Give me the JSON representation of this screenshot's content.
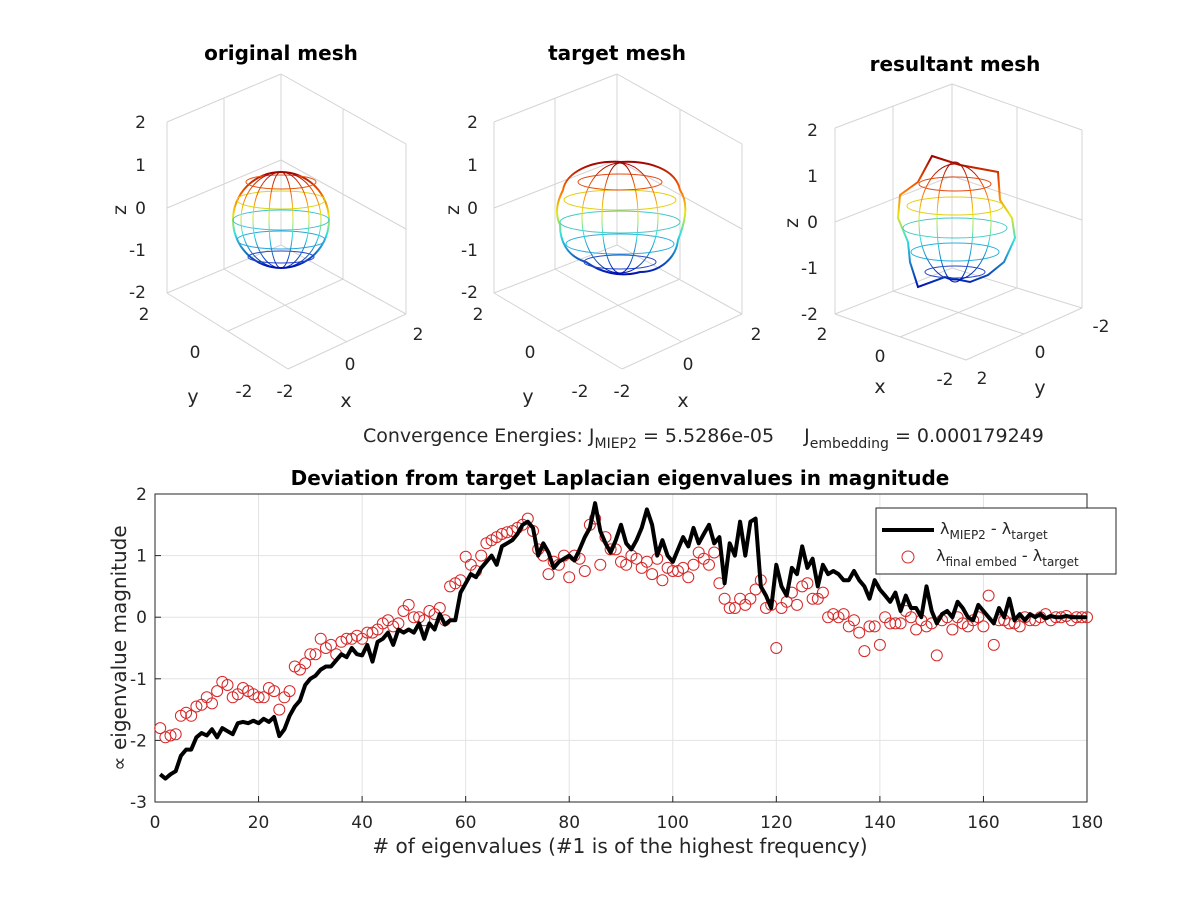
{
  "titles": {
    "mesh1": "original mesh",
    "mesh2": "target mesh",
    "mesh3": "resultant mesh",
    "bottom": "Deviation from target Laplacian eigenvalues in magnitude"
  },
  "convergence": {
    "prefix": "Convergence Energies: J",
    "sub1": "MIEP2",
    "mid1": " = 5.5286e-05",
    "j2": "J",
    "sub2": "embedding",
    "mid2": " = 0.000179249"
  },
  "mesh_axes": {
    "z_label": "z",
    "x_label": "x",
    "y_label": "y",
    "ticks": [
      "2",
      "1",
      "0",
      "-1",
      "-2"
    ],
    "side_ticks_a": [
      "2",
      "0",
      "-2"
    ],
    "side_ticks_b": [
      "-2",
      "0",
      "2"
    ]
  },
  "legend": {
    "l1_a": "λ",
    "l1_sub": "MIEP2",
    "l1_b": " - λ",
    "l1_sub2": "target",
    "l2_a": "λ",
    "l2_sub": "final embed",
    "l2_b": " - λ",
    "l2_sub2": "target"
  },
  "colors": {
    "line": "#000000",
    "marker": "#d62728"
  },
  "chart_data": {
    "type": "line",
    "title": "Deviation from target Laplacian eigenvalues in magnitude",
    "xlabel": "# of eigenvalues (#1 is of the highest frequency)",
    "ylabel": "∝ eigenvalue magnitude",
    "xlim": [
      0,
      180
    ],
    "ylim": [
      -3,
      2
    ],
    "xticks": [
      0,
      20,
      40,
      60,
      80,
      100,
      120,
      140,
      160,
      180
    ],
    "yticks": [
      -3,
      -2,
      -1,
      0,
      1,
      2
    ],
    "grid": true,
    "legend_position": "top-right",
    "series": [
      {
        "name": "λMIEP2 - λtarget",
        "style": "line",
        "x": [
          1,
          2,
          3,
          4,
          5,
          6,
          7,
          8,
          9,
          10,
          11,
          12,
          13,
          14,
          15,
          16,
          17,
          18,
          19,
          20,
          21,
          22,
          23,
          24,
          25,
          26,
          27,
          28,
          29,
          30,
          31,
          32,
          33,
          34,
          35,
          36,
          37,
          38,
          39,
          40,
          41,
          42,
          43,
          44,
          45,
          46,
          47,
          48,
          49,
          50,
          51,
          52,
          53,
          54,
          55,
          56,
          57,
          58,
          59,
          60,
          61,
          62,
          63,
          64,
          65,
          66,
          67,
          68,
          69,
          70,
          71,
          72,
          73,
          74,
          75,
          76,
          77,
          78,
          79,
          80,
          81,
          82,
          83,
          84,
          85,
          86,
          87,
          88,
          89,
          90,
          91,
          92,
          93,
          94,
          95,
          96,
          97,
          98,
          99,
          100,
          101,
          102,
          103,
          104,
          105,
          106,
          107,
          108,
          109,
          110,
          111,
          112,
          113,
          114,
          115,
          116,
          117,
          118,
          119,
          120,
          121,
          122,
          123,
          124,
          125,
          126,
          127,
          128,
          129,
          130,
          131,
          132,
          133,
          134,
          135,
          136,
          137,
          138,
          139,
          140,
          141,
          142,
          143,
          144,
          145,
          146,
          147,
          148,
          149,
          150,
          151,
          152,
          153,
          154,
          155,
          156,
          157,
          158,
          159,
          160,
          161,
          162,
          163,
          164,
          165,
          166,
          167,
          168,
          169,
          170,
          171,
          172,
          173,
          174,
          175,
          176,
          177,
          178,
          179,
          180
        ],
        "values": [
          -2.55,
          -2.62,
          -2.55,
          -2.5,
          -2.25,
          -2.15,
          -2.15,
          -1.95,
          -1.88,
          -1.92,
          -1.82,
          -1.95,
          -1.8,
          -1.85,
          -1.9,
          -1.72,
          -1.7,
          -1.72,
          -1.68,
          -1.72,
          -1.65,
          -1.7,
          -1.62,
          -1.93,
          -1.82,
          -1.6,
          -1.45,
          -1.35,
          -1.1,
          -1.0,
          -0.95,
          -0.85,
          -0.8,
          -0.8,
          -0.7,
          -0.6,
          -0.65,
          -0.5,
          -0.6,
          -0.62,
          -0.45,
          -0.72,
          -0.4,
          -0.35,
          -0.25,
          -0.45,
          -0.2,
          -0.25,
          -0.2,
          -0.25,
          -0.1,
          -0.35,
          -0.1,
          -0.2,
          0.05,
          -0.12,
          -0.05,
          -0.05,
          0.4,
          0.55,
          0.7,
          0.65,
          0.8,
          0.9,
          1.0,
          0.85,
          1.15,
          1.2,
          1.25,
          1.35,
          1.5,
          1.55,
          1.45,
          1.0,
          1.2,
          1.05,
          0.8,
          0.9,
          0.95,
          1.0,
          0.92,
          1.1,
          1.3,
          1.45,
          1.85,
          1.4,
          1.2,
          1.05,
          1.25,
          1.5,
          1.2,
          1.1,
          1.25,
          1.45,
          1.75,
          1.5,
          1.0,
          1.25,
          1.0,
          0.9,
          1.1,
          1.3,
          1.15,
          1.45,
          1.2,
          1.35,
          1.5,
          1.2,
          1.3,
          0.55,
          1.2,
          1.0,
          1.55,
          1.0,
          1.55,
          1.6,
          0.5,
          0.35,
          0.15,
          0.85,
          0.5,
          0.35,
          0.8,
          0.7,
          1.15,
          0.8,
          0.95,
          0.5,
          0.85,
          0.7,
          0.75,
          0.7,
          0.6,
          0.6,
          0.75,
          0.6,
          0.5,
          0.3,
          0.6,
          0.45,
          0.35,
          0.25,
          0.4,
          0.1,
          0.35,
          0.15,
          0.15,
          0.0,
          0.5,
          0.1,
          -0.1,
          0.05,
          0.1,
          0.0,
          0.25,
          0.15,
          0.0,
          -0.05,
          0.2,
          0.1,
          0.0,
          -0.1,
          0.15,
          0.0,
          0.3,
          -0.05,
          0.05,
          -0.05,
          0.05,
          0.0,
          0.05,
          -0.02,
          0.02,
          0.0,
          0.0,
          0.02,
          0.0,
          0.0,
          0.0,
          0.0
        ]
      },
      {
        "name": "λfinal embed - λtarget",
        "style": "markers",
        "x": [
          1,
          2,
          3,
          4,
          5,
          6,
          7,
          8,
          9,
          10,
          11,
          12,
          13,
          14,
          15,
          16,
          17,
          18,
          19,
          20,
          21,
          22,
          23,
          24,
          25,
          26,
          27,
          28,
          29,
          30,
          31,
          32,
          33,
          34,
          35,
          36,
          37,
          38,
          39,
          40,
          41,
          42,
          43,
          44,
          45,
          46,
          47,
          48,
          49,
          50,
          51,
          52,
          53,
          54,
          55,
          56,
          57,
          58,
          59,
          60,
          61,
          62,
          63,
          64,
          65,
          66,
          67,
          68,
          69,
          70,
          71,
          72,
          73,
          74,
          75,
          76,
          77,
          78,
          79,
          80,
          81,
          82,
          83,
          84,
          85,
          86,
          87,
          88,
          89,
          90,
          91,
          92,
          93,
          94,
          95,
          96,
          97,
          98,
          99,
          100,
          101,
          102,
          103,
          104,
          105,
          106,
          107,
          108,
          109,
          110,
          111,
          112,
          113,
          114,
          115,
          116,
          117,
          118,
          119,
          120,
          121,
          122,
          123,
          124,
          125,
          126,
          127,
          128,
          129,
          130,
          131,
          132,
          133,
          134,
          135,
          136,
          137,
          138,
          139,
          140,
          141,
          142,
          143,
          144,
          145,
          146,
          147,
          148,
          149,
          150,
          151,
          152,
          153,
          154,
          155,
          156,
          157,
          158,
          159,
          160,
          161,
          162,
          163,
          164,
          165,
          166,
          167,
          168,
          169,
          170,
          171,
          172,
          173,
          174,
          175,
          176,
          177,
          178,
          179,
          180
        ],
        "values": [
          -1.8,
          -1.95,
          -1.92,
          -1.9,
          -1.6,
          -1.55,
          -1.6,
          -1.45,
          -1.42,
          -1.3,
          -1.4,
          -1.2,
          -1.05,
          -1.1,
          -1.3,
          -1.25,
          -1.15,
          -1.2,
          -1.25,
          -1.3,
          -1.3,
          -1.15,
          -1.2,
          -1.5,
          -1.3,
          -1.2,
          -0.8,
          -0.85,
          -0.75,
          -0.6,
          -0.6,
          -0.35,
          -0.5,
          -0.45,
          -0.6,
          -0.4,
          -0.35,
          -0.35,
          -0.3,
          -0.35,
          -0.25,
          -0.25,
          -0.2,
          -0.1,
          -0.05,
          -0.15,
          -0.1,
          0.1,
          0.2,
          0.0,
          0.0,
          -0.05,
          0.1,
          0.05,
          0.15,
          -0.05,
          0.5,
          0.55,
          0.6,
          0.98,
          0.85,
          0.75,
          1.0,
          1.2,
          1.25,
          1.3,
          1.35,
          1.38,
          1.4,
          1.45,
          1.5,
          1.6,
          1.4,
          1.1,
          1.0,
          0.7,
          0.9,
          0.85,
          1.0,
          0.65,
          1.0,
          0.95,
          0.75,
          1.5,
          1.6,
          0.85,
          1.3,
          1.1,
          1.1,
          0.9,
          0.85,
          1.0,
          0.95,
          0.8,
          0.9,
          0.7,
          0.95,
          0.6,
          0.8,
          0.75,
          0.75,
          0.8,
          0.65,
          0.85,
          1.05,
          0.95,
          0.85,
          1.05,
          0.55,
          0.3,
          0.15,
          0.15,
          0.3,
          0.2,
          0.3,
          0.45,
          0.6,
          0.15,
          0.2,
          -0.5,
          0.15,
          0.25,
          0.4,
          0.2,
          0.5,
          0.55,
          0.3,
          0.3,
          0.4,
          0.0,
          0.05,
          0.0,
          0.05,
          -0.15,
          -0.05,
          -0.25,
          -0.55,
          -0.15,
          -0.15,
          -0.45,
          0.0,
          -0.1,
          -0.1,
          -0.1,
          0.1,
          0.0,
          -0.2,
          -0.05,
          -0.15,
          -0.1,
          -0.62,
          -0.05,
          0.0,
          -0.2,
          0.0,
          -0.1,
          -0.15,
          -0.05,
          0.0,
          -0.15,
          0.35,
          -0.45,
          -0.05,
          -0.05,
          -0.1,
          -0.1,
          -0.15,
          0.0,
          -0.05,
          -0.05,
          0.0,
          0.05,
          -0.05,
          0.0,
          0.0,
          0.02,
          -0.05,
          0.0,
          0.0,
          0.0
        ]
      }
    ]
  }
}
